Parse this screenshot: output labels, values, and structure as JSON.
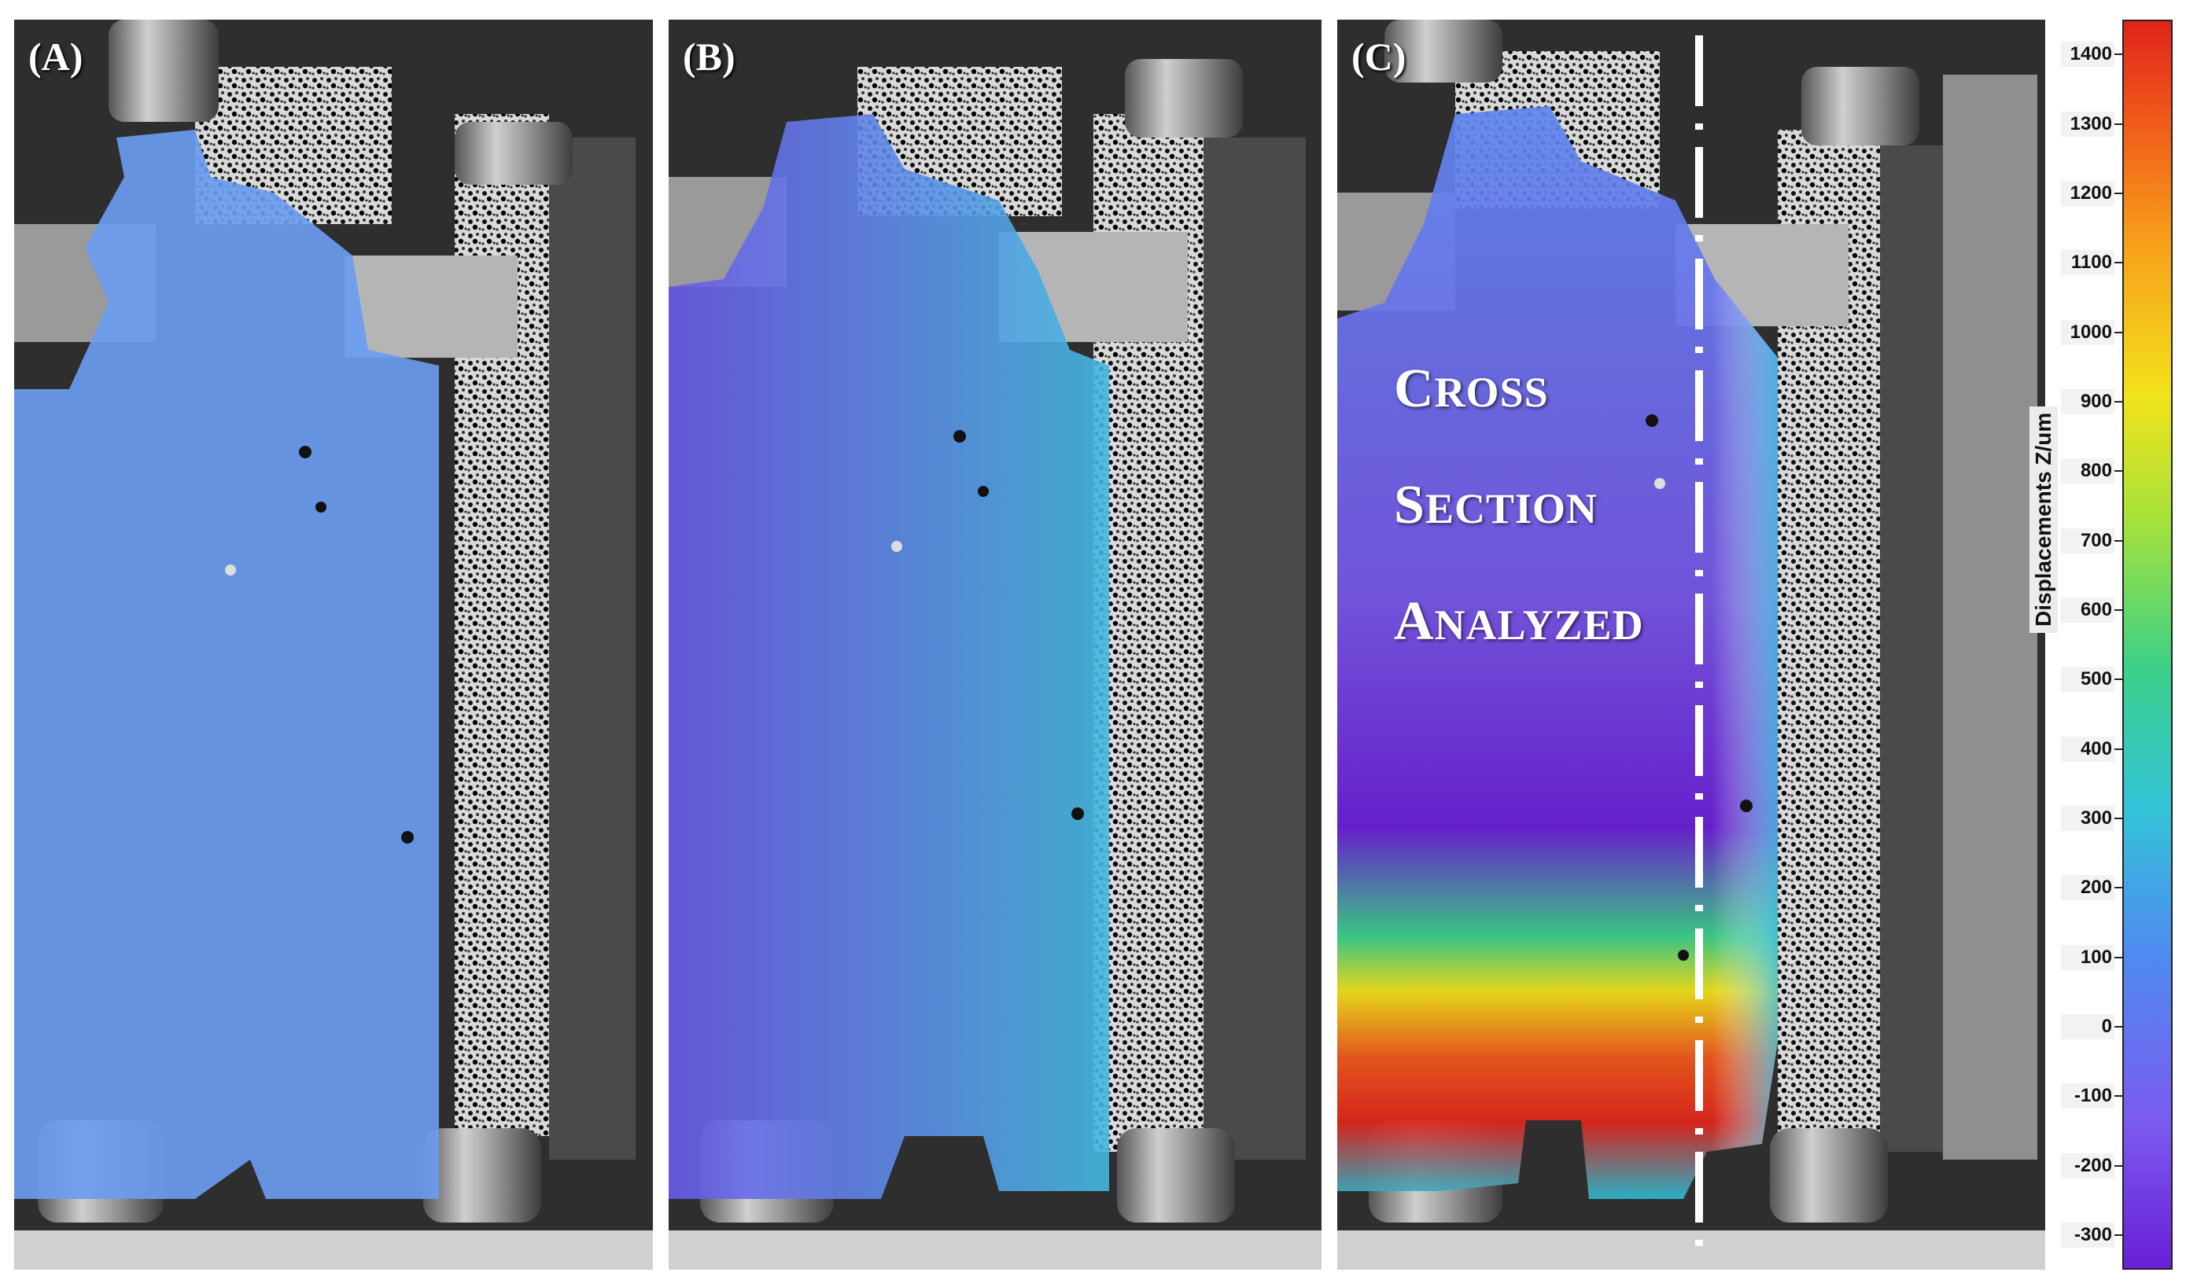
{
  "panels": [
    {
      "label": "(A)"
    },
    {
      "label": "(B)"
    },
    {
      "label": "(C)"
    }
  ],
  "annotation": {
    "line1_cap": "C",
    "line1_rest": "ROSS",
    "line2_cap": "S",
    "line2_rest": "ECTION",
    "line3_cap": "A",
    "line3_rest": "NALYZED"
  },
  "colorbar": {
    "title": "Displacements Z/um",
    "ticks": [
      "1400",
      "1300",
      "1200",
      "1100",
      "1000",
      "900",
      "800",
      "700",
      "600",
      "500",
      "400",
      "300",
      "200",
      "100",
      "0",
      "-100",
      "-200",
      "-300"
    ],
    "range": [
      -350,
      1450
    ],
    "colors": [
      "#6a1fd6",
      "#7a5cf0",
      "#4f8af0",
      "#34c4d8",
      "#3bd08a",
      "#a6e23a",
      "#f2e21a",
      "#f7a11a",
      "#f05a1a",
      "#e0241a"
    ]
  },
  "colors": {
    "field_uniform": "#6a9cf0",
    "field_purple": "#6b2fd8",
    "field_red": "#e32a16",
    "field_cyan": "#3fb7e8"
  }
}
